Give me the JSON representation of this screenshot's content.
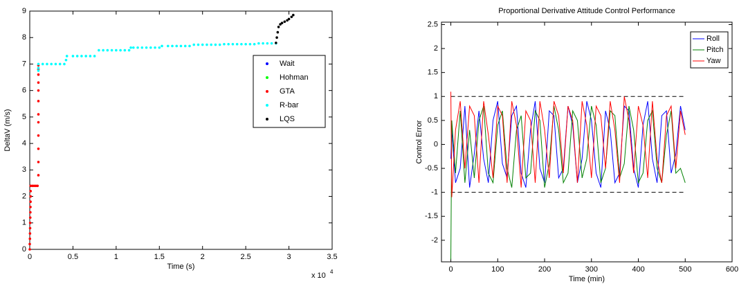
{
  "chart_data": [
    {
      "type": "scatter",
      "xlabel": "Time (s)",
      "ylabel": "DeltaV (m/s)",
      "x_exponent_label": {
        "base": "x 10",
        "exponent": "4"
      },
      "xlim": [
        0,
        3.5
      ],
      "xticks": [
        0,
        0.5,
        1,
        1.5,
        2,
        2.5,
        3,
        3.5
      ],
      "ylim": [
        0,
        9
      ],
      "yticks": [
        0,
        1,
        2,
        3,
        4,
        5,
        6,
        7,
        8,
        9
      ],
      "grid": false,
      "legend": "upper right",
      "series": [
        {
          "name": "Wait",
          "color": "#0000ff",
          "x": [],
          "values": []
        },
        {
          "name": "Hohman",
          "color": "#00ff00",
          "x": [],
          "values": []
        },
        {
          "name": "GTA",
          "color": "#ff0000",
          "x": [
            0,
            0,
            0.002,
            0.003,
            0.004,
            0.005,
            0.006,
            0.007,
            0.008,
            0.009,
            0.01,
            0.01,
            0.01,
            0.03,
            0.05,
            0.07,
            0.09,
            0.1,
            0.1,
            0.1,
            0.1,
            0.1,
            0.1,
            0.1,
            0.1,
            0.1,
            0.1,
            0.1,
            0.1
          ],
          "values": [
            0,
            0.2,
            0.4,
            0.6,
            0.8,
            1.0,
            1.2,
            1.4,
            1.6,
            1.8,
            2.0,
            2.2,
            2.4,
            2.4,
            2.4,
            2.4,
            2.4,
            2.8,
            3.3,
            3.8,
            4.3,
            4.8,
            5.1,
            5.6,
            6.0,
            6.3,
            6.6,
            6.8,
            6.95
          ]
        },
        {
          "name": "R-bar",
          "color": "#00ffff",
          "x": [
            0.1,
            0.1,
            0.1,
            0.15,
            0.2,
            0.25,
            0.3,
            0.35,
            0.4,
            0.42,
            0.43,
            0.5,
            0.55,
            0.6,
            0.65,
            0.7,
            0.75,
            0.8,
            0.85,
            0.9,
            0.95,
            1.0,
            1.05,
            1.1,
            1.15,
            1.17,
            1.2,
            1.25,
            1.3,
            1.35,
            1.4,
            1.45,
            1.5,
            1.53,
            1.6,
            1.65,
            1.7,
            1.75,
            1.8,
            1.85,
            1.9,
            1.95,
            2.0,
            2.05,
            2.1,
            2.15,
            2.2,
            2.25,
            2.3,
            2.35,
            2.4,
            2.45,
            2.5,
            2.55,
            2.6,
            2.65,
            2.7,
            2.75,
            2.8,
            2.85
          ],
          "values": [
            6.75,
            6.85,
            7.0,
            7.0,
            7.0,
            7.0,
            7.0,
            7.0,
            7.0,
            7.15,
            7.3,
            7.3,
            7.3,
            7.3,
            7.3,
            7.3,
            7.3,
            7.52,
            7.52,
            7.52,
            7.52,
            7.52,
            7.52,
            7.52,
            7.52,
            7.62,
            7.62,
            7.62,
            7.62,
            7.62,
            7.62,
            7.62,
            7.62,
            7.68,
            7.68,
            7.68,
            7.68,
            7.68,
            7.68,
            7.68,
            7.73,
            7.73,
            7.73,
            7.73,
            7.73,
            7.73,
            7.73,
            7.75,
            7.75,
            7.75,
            7.75,
            7.75,
            7.75,
            7.75,
            7.75,
            7.78,
            7.78,
            7.78,
            7.78,
            7.78
          ]
        },
        {
          "name": "LQS",
          "color": "#000000",
          "x": [
            2.85,
            2.86,
            2.87,
            2.88,
            2.9,
            2.92,
            2.95,
            2.98,
            3.0,
            3.03,
            3.05
          ],
          "values": [
            7.8,
            8.0,
            8.2,
            8.4,
            8.5,
            8.55,
            8.6,
            8.65,
            8.7,
            8.78,
            8.85
          ]
        }
      ]
    },
    {
      "type": "line",
      "title": "Proportional Derivative Attitude Control Performance",
      "xlabel": "Time (min)",
      "ylabel": "Control Error",
      "xlim": [
        -20,
        600
      ],
      "xticks": [
        0,
        100,
        200,
        300,
        400,
        500,
        600
      ],
      "ylim": [
        -2.45,
        2.55
      ],
      "yticks": [
        -2,
        -1.5,
        -1,
        -0.5,
        0,
        0.5,
        1,
        1.5,
        2,
        2.5
      ],
      "grid": false,
      "legend": "upper right",
      "reference_lines": [
        {
          "y": 1,
          "x": [
            0,
            500
          ]
        },
        {
          "y": -1,
          "x": [
            0,
            500
          ]
        }
      ],
      "x": [
        0,
        2,
        10,
        20,
        30,
        40,
        50,
        60,
        70,
        80,
        90,
        100,
        110,
        120,
        130,
        140,
        150,
        160,
        170,
        180,
        190,
        200,
        210,
        220,
        230,
        240,
        250,
        260,
        270,
        280,
        290,
        300,
        310,
        320,
        330,
        340,
        350,
        360,
        370,
        380,
        390,
        400,
        410,
        420,
        430,
        440,
        450,
        460,
        470,
        480,
        490,
        500
      ],
      "series": [
        {
          "name": "Roll",
          "color": "#0000ff",
          "values": [
            -0.3,
            0.3,
            -0.8,
            -0.5,
            0.8,
            -0.9,
            -0.2,
            0.7,
            -0.3,
            -0.8,
            0.5,
            0.9,
            -0.4,
            -0.7,
            0.6,
            0.8,
            -0.6,
            -0.9,
            0.3,
            0.9,
            -0.5,
            -0.8,
            0.7,
            0.6,
            -0.7,
            -0.5,
            0.8,
            0.4,
            -0.8,
            -0.3,
            0.9,
            0.5,
            -0.6,
            -0.9,
            0.7,
            0.3,
            -0.8,
            -0.6,
            0.8,
            0.7,
            -0.5,
            -0.9,
            0.4,
            0.9,
            -0.3,
            -0.8,
            0.6,
            0.7,
            -0.6,
            -0.2,
            0.8,
            0.3
          ]
        },
        {
          "name": "Pitch",
          "color": "#008000",
          "values": [
            -2.4,
            0.5,
            -0.6,
            0.7,
            -0.8,
            0.3,
            -0.7,
            0.5,
            0.8,
            -0.6,
            -0.8,
            0.4,
            0.7,
            -0.5,
            -0.9,
            0.3,
            0.6,
            -0.7,
            -0.6,
            0.7,
            0.5,
            -0.9,
            -0.4,
            0.8,
            0.3,
            -0.8,
            -0.6,
            0.7,
            0.5,
            -0.7,
            -0.3,
            0.8,
            0.4,
            -0.8,
            -0.5,
            0.7,
            0.6,
            -0.7,
            -0.4,
            0.8,
            0.3,
            -0.8,
            -0.6,
            0.5,
            0.7,
            -0.5,
            -0.8,
            0.2,
            0.7,
            -0.6,
            -0.5,
            -0.8
          ]
        },
        {
          "name": "Yaw",
          "color": "#ff0000",
          "values": [
            1.1,
            -1.1,
            0.3,
            0.9,
            -0.5,
            0.8,
            0.6,
            -0.8,
            0.9,
            0.2,
            -0.7,
            0.8,
            0.6,
            -0.8,
            0.9,
            0.4,
            -0.9,
            0.7,
            0.5,
            -0.8,
            0.9,
            0.3,
            -0.7,
            0.9,
            0.6,
            -0.6,
            0.8,
            0.5,
            -0.8,
            0.9,
            0.4,
            -0.7,
            0.8,
            0.6,
            -0.5,
            0.9,
            0.3,
            -0.8,
            1.0,
            0.5,
            -0.6,
            0.8,
            0.4,
            -0.7,
            0.9,
            -0.3,
            -0.8,
            0.6,
            0.8,
            -0.5,
            0.7,
            0.2
          ]
        }
      ]
    }
  ]
}
